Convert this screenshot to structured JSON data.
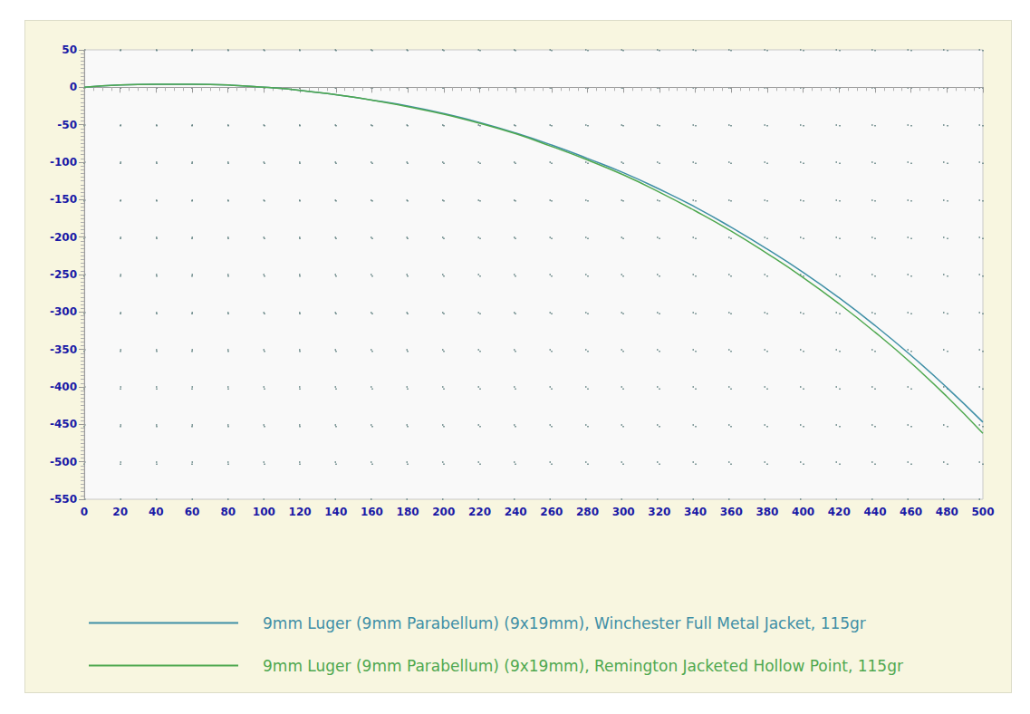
{
  "chart_data": {
    "type": "line",
    "x": [
      0,
      20,
      40,
      60,
      80,
      100,
      120,
      140,
      160,
      180,
      200,
      220,
      240,
      260,
      280,
      300,
      320,
      340,
      360,
      380,
      400,
      420,
      440,
      460,
      480,
      500
    ],
    "series": [
      {
        "name": "9mm Luger (9mm Parabellum) (9x19mm), Winchester Full Metal Jacket, 115gr",
        "color": "#3f8fa6",
        "values": [
          0,
          3,
          4,
          4,
          3,
          0,
          -4,
          -10,
          -17,
          -25,
          -35,
          -47,
          -61,
          -77,
          -95,
          -114,
          -136,
          -160,
          -187,
          -216,
          -247,
          -281,
          -318,
          -358,
          -401,
          -447
        ]
      },
      {
        "name": "9mm Luger (9mm Parabellum) (9x19mm), Remington Jacketed Hollow Point, 115gr",
        "color": "#4fa84f",
        "values": [
          0,
          3,
          4,
          4,
          3,
          0,
          -4,
          -10,
          -17,
          -26,
          -36,
          -48,
          -62,
          -79,
          -97,
          -117,
          -140,
          -165,
          -192,
          -222,
          -254,
          -289,
          -327,
          -368,
          -413,
          -462
        ]
      }
    ],
    "xlim": [
      0,
      500
    ],
    "xticks": [
      0,
      20,
      40,
      60,
      80,
      100,
      120,
      140,
      160,
      180,
      200,
      220,
      240,
      260,
      280,
      300,
      320,
      340,
      360,
      380,
      400,
      420,
      440,
      460,
      480,
      500
    ],
    "ylim": [
      -550,
      50
    ],
    "yticks": [
      -550,
      -500,
      -450,
      -400,
      -350,
      -300,
      -250,
      -200,
      -150,
      -100,
      -50,
      0,
      50
    ],
    "grid": true,
    "legend": "bottom"
  }
}
